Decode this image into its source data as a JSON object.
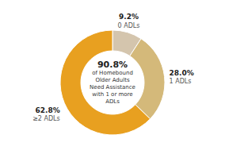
{
  "chart_data": {
    "type": "donut",
    "categories": [
      "0 ADLs",
      "1 ADLs",
      "≥2 ADLs"
    ],
    "values": [
      9.2,
      28.0,
      62.8
    ],
    "value_labels": [
      "9.2%",
      "28.0%",
      "62.8%"
    ],
    "data_labels": true,
    "colors": [
      "#d4c5ad",
      "#d4b97a",
      "#e8a020"
    ],
    "annotations": [
      "90.8%",
      "of Homebound\nOlder Adults\nNeed Assistance\nwith 1 or more\nADLs"
    ]
  }
}
